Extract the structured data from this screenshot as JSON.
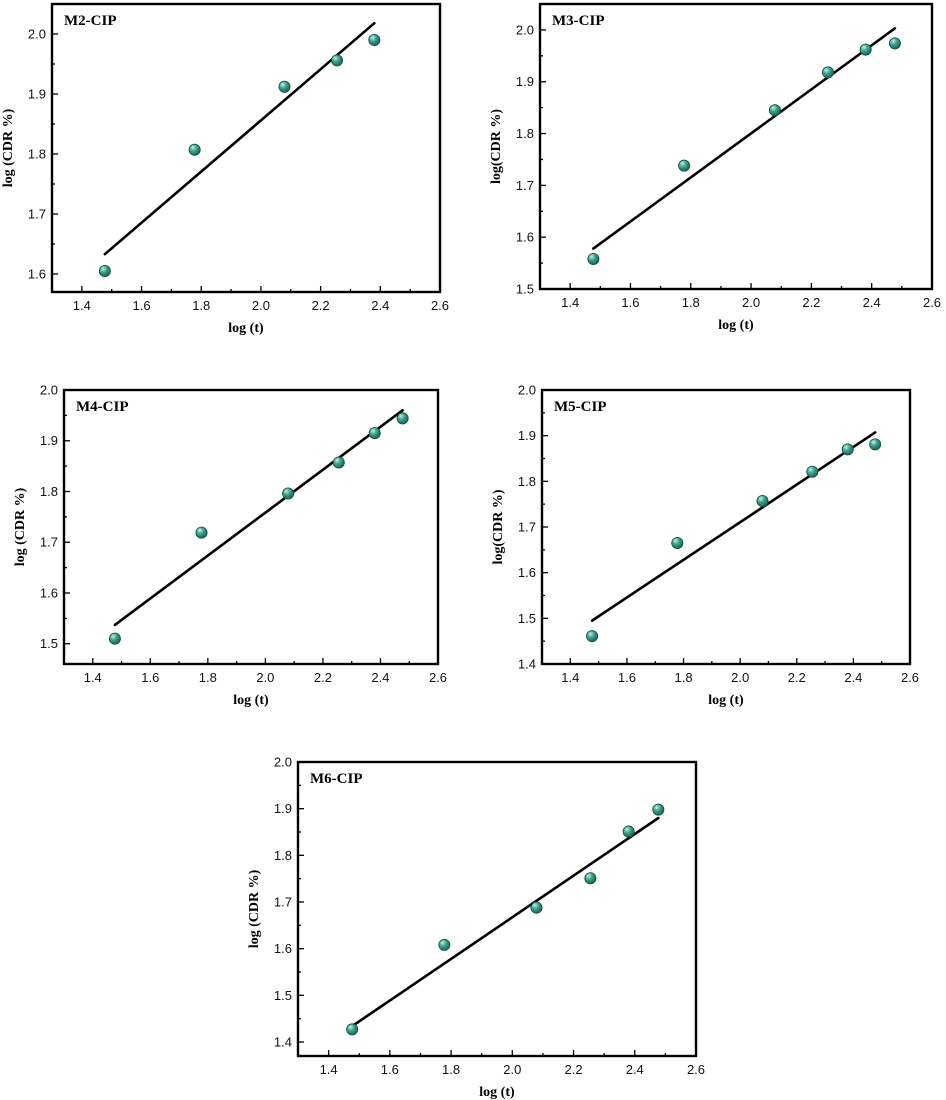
{
  "chart_data": [
    {
      "type": "scatter",
      "title": "M2-CIP",
      "xlabel": "log (t)",
      "ylabel": "log (CDR %)",
      "xlim": [
        1.3,
        2.6
      ],
      "ylim": [
        1.57,
        2.05
      ],
      "xticks": [
        "1.4",
        "1.6",
        "1.8",
        "2.0",
        "2.2",
        "2.4",
        "2.6"
      ],
      "yticks": [
        "1.6",
        "1.7",
        "1.8",
        "1.9",
        "2.0"
      ],
      "series": [
        {
          "name": "data",
          "x": [
            1.477,
            1.778,
            2.079,
            2.255,
            2.38
          ],
          "y": [
            1.605,
            1.807,
            1.912,
            1.956,
            1.99
          ]
        },
        {
          "name": "fit",
          "x": [
            1.477,
            2.38
          ],
          "y": [
            1.633,
            2.018
          ]
        }
      ]
    },
    {
      "type": "scatter",
      "title": "M3-CIP",
      "xlabel": "log (t)",
      "ylabel": "log(CDR %)",
      "xlim": [
        1.3,
        2.6
      ],
      "ylim": [
        1.5,
        2.05
      ],
      "xticks": [
        "1.4",
        "1.6",
        "1.8",
        "2.0",
        "2.2",
        "2.4",
        "2.6"
      ],
      "yticks": [
        "1.5",
        "1.6",
        "1.7",
        "1.8",
        "1.9",
        "2.0"
      ],
      "series": [
        {
          "name": "data",
          "x": [
            1.477,
            1.778,
            2.079,
            2.255,
            2.38,
            2.477
          ],
          "y": [
            1.558,
            1.738,
            1.845,
            1.918,
            1.962,
            1.974
          ]
        },
        {
          "name": "fit",
          "x": [
            1.477,
            2.477
          ],
          "y": [
            1.578,
            2.003
          ]
        }
      ]
    },
    {
      "type": "scatter",
      "title": "M4-CIP",
      "xlabel": "log (t)",
      "ylabel": "log (CDR %)",
      "xlim": [
        1.3,
        2.6
      ],
      "ylim": [
        1.46,
        2.0
      ],
      "xticks": [
        "1.4",
        "1.6",
        "1.8",
        "2.0",
        "2.2",
        "2.4",
        "2.6"
      ],
      "yticks": [
        "1.5",
        "1.6",
        "1.7",
        "1.8",
        "1.9",
        "2.0"
      ],
      "series": [
        {
          "name": "data",
          "x": [
            1.477,
            1.778,
            2.079,
            2.255,
            2.38,
            2.477
          ],
          "y": [
            1.51,
            1.719,
            1.796,
            1.857,
            1.915,
            1.944
          ]
        },
        {
          "name": "fit",
          "x": [
            1.477,
            2.477
          ],
          "y": [
            1.537,
            1.96
          ]
        }
      ]
    },
    {
      "type": "scatter",
      "title": "M5-CIP",
      "xlabel": "log (t)",
      "ylabel": "log(CDR %)",
      "xlim": [
        1.3,
        2.6
      ],
      "ylim": [
        1.4,
        2.0
      ],
      "xticks": [
        "1.4",
        "1.6",
        "1.8",
        "2.0",
        "2.2",
        "2.4",
        "2.6"
      ],
      "yticks": [
        "1.4",
        "1.5",
        "1.6",
        "1.7",
        "1.8",
        "1.9",
        "2.0"
      ],
      "series": [
        {
          "name": "data",
          "x": [
            1.477,
            1.778,
            2.079,
            2.255,
            2.38,
            2.477
          ],
          "y": [
            1.461,
            1.665,
            1.757,
            1.821,
            1.87,
            1.881
          ]
        },
        {
          "name": "fit",
          "x": [
            1.477,
            2.477
          ],
          "y": [
            1.495,
            1.907
          ]
        }
      ]
    },
    {
      "type": "scatter",
      "title": "M6-CIP",
      "xlabel": "log (t)",
      "ylabel": "log (CDR %)",
      "xlim": [
        1.3,
        2.6
      ],
      "ylim": [
        1.37,
        2.0
      ],
      "xticks": [
        "1.4",
        "1.6",
        "1.8",
        "2.0",
        "2.2",
        "2.4",
        "2.6"
      ],
      "yticks": [
        "1.4",
        "1.5",
        "1.6",
        "1.7",
        "1.8",
        "1.9",
        "2.0"
      ],
      "series": [
        {
          "name": "data",
          "x": [
            1.477,
            1.778,
            2.079,
            2.255,
            2.38,
            2.477
          ],
          "y": [
            1.427,
            1.608,
            1.688,
            1.751,
            1.851,
            1.898
          ]
        },
        {
          "name": "fit",
          "x": [
            1.477,
            2.477
          ],
          "y": [
            1.434,
            1.88
          ]
        }
      ]
    }
  ],
  "style": {
    "marker_color": "#3fa38f",
    "marker_highlight": "#c8efe6",
    "line_color": "#000000"
  }
}
